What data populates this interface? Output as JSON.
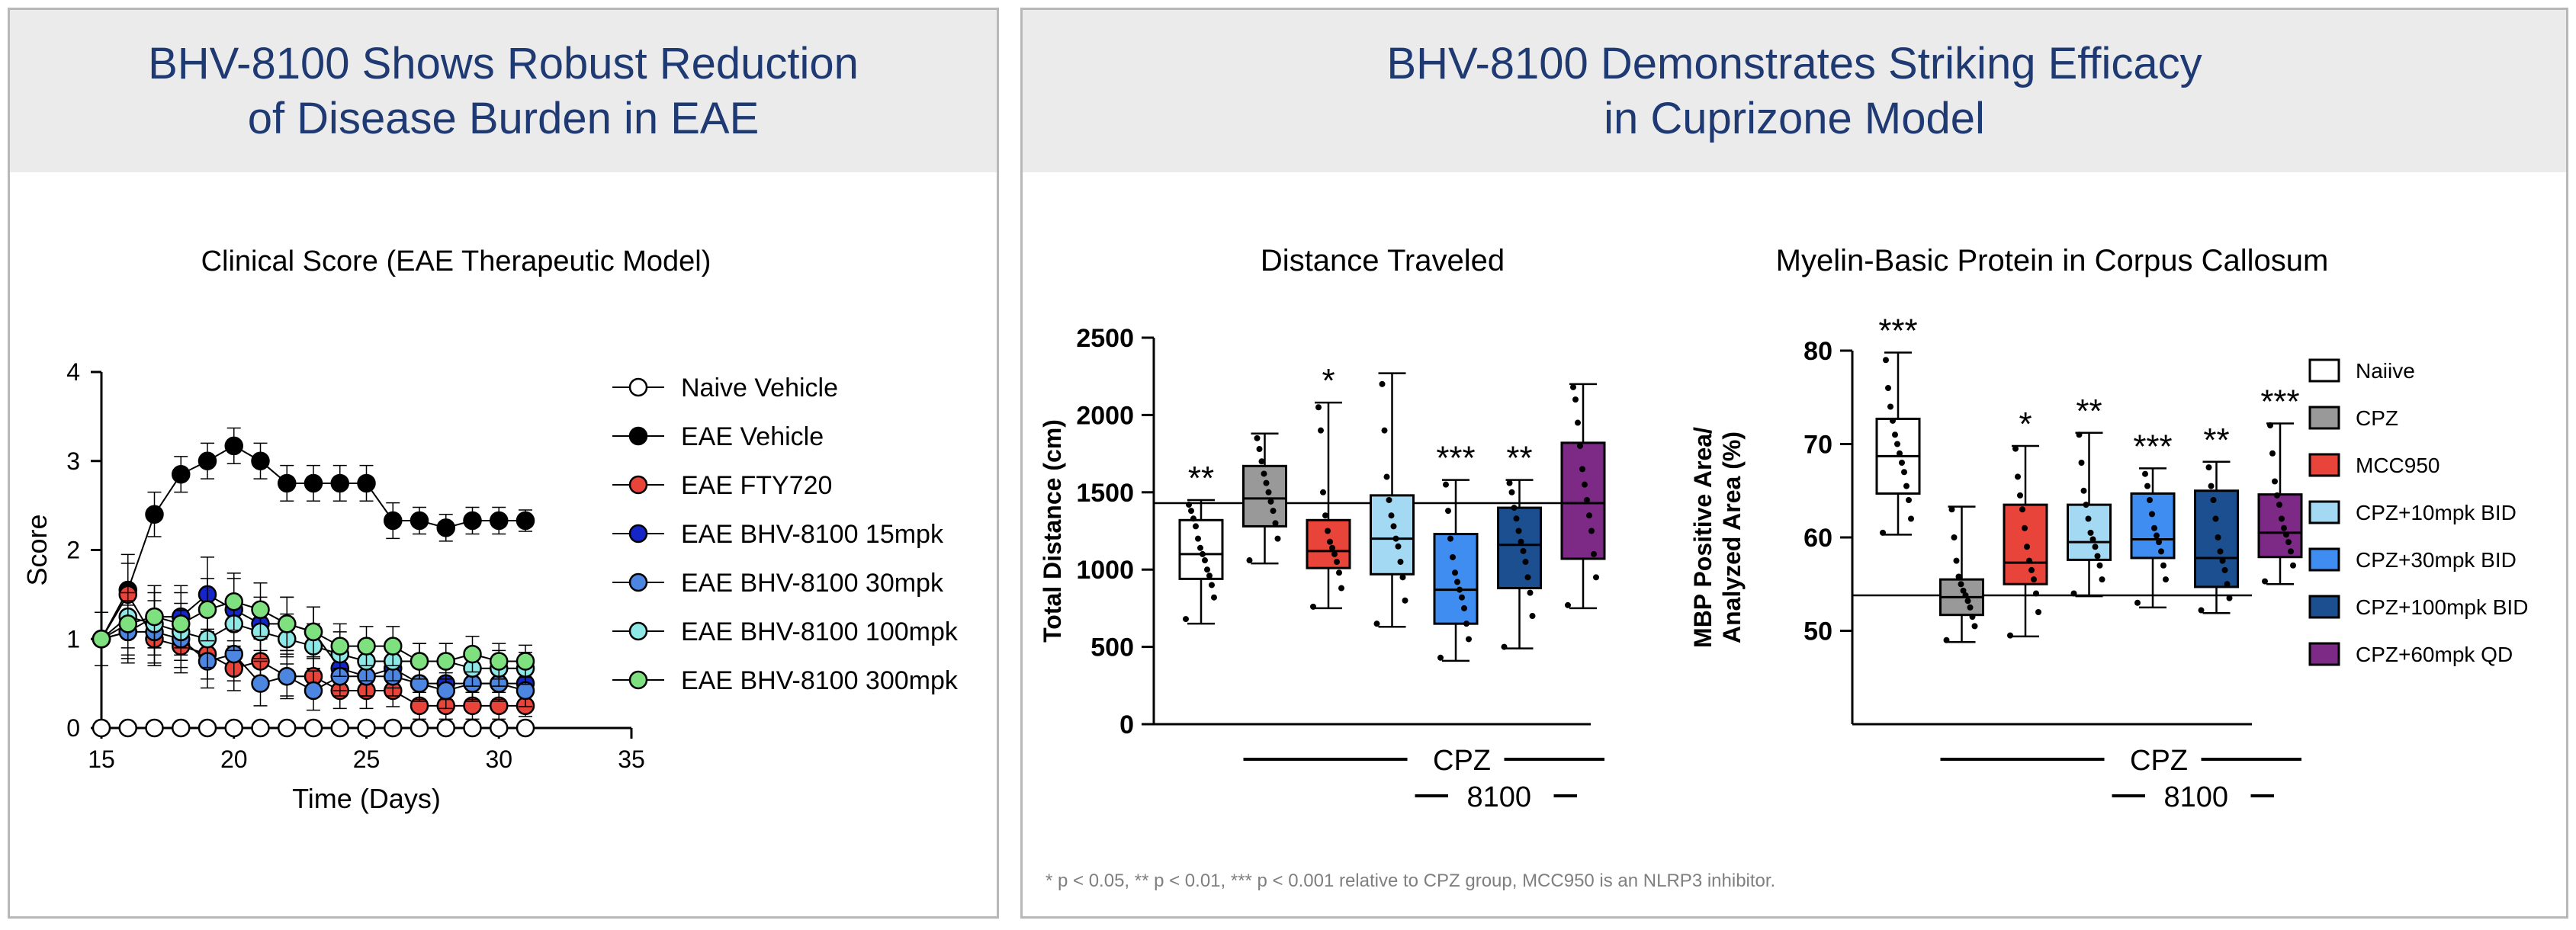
{
  "left_panel": {
    "title": "BHV-8100 Shows Robust Reduction\nof Disease Burden in EAE"
  },
  "right_panel": {
    "title": "BHV-8100 Demonstrates Striking Efficacy\nin Cuprizone Model"
  },
  "footnote": "* p < 0.05, ** p < 0.01, *** p < 0.001 relative to CPZ group, MCC950 is an NLRP3 inhibitor.",
  "chart_data": [
    {
      "type": "line",
      "title": "Clinical Score (EAE Therapeutic Model)",
      "xlabel": "Time (Days)",
      "ylabel": "Score",
      "xlim": [
        15,
        35
      ],
      "ylim": [
        0,
        4
      ],
      "xticks": [
        "15",
        "20",
        "25",
        "30",
        "35"
      ],
      "yticks": [
        "0",
        "1",
        "2",
        "3",
        "4"
      ],
      "x": [
        15,
        16,
        17,
        18,
        19,
        20,
        21,
        22,
        23,
        24,
        25,
        26,
        27,
        28,
        29,
        30,
        31
      ],
      "legend_position": "right",
      "series": [
        {
          "name": "Naive Vehicle",
          "color": "#ffffff",
          "values": [
            0,
            0,
            0,
            0,
            0,
            0,
            0,
            0,
            0,
            0,
            0,
            0,
            0,
            0,
            0,
            0,
            0
          ],
          "errors": [
            0,
            0,
            0,
            0,
            0,
            0,
            0,
            0,
            0,
            0,
            0,
            0,
            0,
            0,
            0,
            0,
            0
          ]
        },
        {
          "name": "EAE Vehicle",
          "color": "#000000",
          "values": [
            1.0,
            1.55,
            2.4,
            2.85,
            3.0,
            3.17,
            3.0,
            2.75,
            2.75,
            2.75,
            2.75,
            2.33,
            2.33,
            2.25,
            2.33,
            2.33,
            2.33
          ],
          "errors": [
            0.3,
            0.4,
            0.25,
            0.2,
            0.2,
            0.2,
            0.2,
            0.2,
            0.2,
            0.2,
            0.2,
            0.2,
            0.15,
            0.15,
            0.15,
            0.15,
            0.12
          ]
        },
        {
          "name": "EAE FTY720",
          "color": "#e8443a",
          "values": [
            1.0,
            1.5,
            1.0,
            0.92,
            0.83,
            0.67,
            0.75,
            0.58,
            0.58,
            0.42,
            0.42,
            0.42,
            0.25,
            0.25,
            0.25,
            0.25,
            0.25
          ],
          "errors": [
            0.3,
            0.35,
            0.3,
            0.3,
            0.28,
            0.25,
            0.25,
            0.22,
            0.2,
            0.2,
            0.2,
            0.18,
            0.15,
            0.15,
            0.15,
            0.15,
            0.12
          ]
        },
        {
          "name": "EAE BHV-8100 15mpk",
          "color": "#1525c8",
          "values": [
            1.0,
            1.08,
            1.25,
            1.25,
            1.5,
            1.33,
            1.17,
            1.17,
            1.08,
            0.67,
            0.58,
            0.67,
            0.5,
            0.5,
            0.5,
            0.5,
            0.5
          ],
          "errors": [
            0.3,
            0.3,
            0.35,
            0.35,
            0.42,
            0.35,
            0.3,
            0.3,
            0.28,
            0.25,
            0.22,
            0.22,
            0.18,
            0.18,
            0.18,
            0.18,
            0.15
          ]
        },
        {
          "name": "EAE BHV-8100 30mpk",
          "color": "#4d86e0",
          "values": [
            1.0,
            1.08,
            1.08,
            1.0,
            0.75,
            0.83,
            0.5,
            0.58,
            0.42,
            0.58,
            0.58,
            0.58,
            0.5,
            0.42,
            0.5,
            0.5,
            0.42
          ],
          "errors": [
            0.3,
            0.35,
            0.35,
            0.32,
            0.3,
            0.3,
            0.25,
            0.25,
            0.22,
            0.22,
            0.22,
            0.22,
            0.2,
            0.2,
            0.2,
            0.2,
            0.18
          ]
        },
        {
          "name": "EAE BHV-8100 100mpk",
          "color": "#8ee8e6",
          "values": [
            1.0,
            1.25,
            1.17,
            1.08,
            1.0,
            1.17,
            1.08,
            1.0,
            0.92,
            0.83,
            0.75,
            0.75,
            0.75,
            0.75,
            0.67,
            0.67,
            0.67
          ],
          "errors": [
            0.3,
            0.35,
            0.35,
            0.32,
            0.32,
            0.3,
            0.3,
            0.28,
            0.25,
            0.25,
            0.22,
            0.22,
            0.2,
            0.2,
            0.2,
            0.2,
            0.18
          ]
        },
        {
          "name": "EAE BHV-8100 300mpk",
          "color": "#7ee07e",
          "values": [
            1.0,
            1.17,
            1.25,
            1.17,
            1.33,
            1.42,
            1.33,
            1.17,
            1.08,
            0.92,
            0.92,
            0.92,
            0.75,
            0.75,
            0.83,
            0.75,
            0.75
          ],
          "errors": [
            0.3,
            0.35,
            0.35,
            0.35,
            0.35,
            0.32,
            0.3,
            0.3,
            0.28,
            0.25,
            0.22,
            0.22,
            0.2,
            0.2,
            0.2,
            0.2,
            0.18
          ]
        }
      ]
    },
    {
      "type": "box",
      "title": "Distance Traveled",
      "ylabel": "Total Distance (cm)",
      "ylim": [
        0,
        2500
      ],
      "yticks": [
        "0",
        "500",
        "1000",
        "1500",
        "2000",
        "2500"
      ],
      "reference_line": 1430,
      "group_labels": [
        "CPZ",
        "8100"
      ],
      "series": [
        {
          "name": "Naiive",
          "color": "#ffffff",
          "min": 650,
          "q1": 940,
          "median": 1100,
          "q3": 1320,
          "max": 1450,
          "significance": "**",
          "points": [
            680,
            820,
            900,
            960,
            1000,
            1060,
            1100,
            1140,
            1200,
            1280,
            1330,
            1380,
            1420
          ]
        },
        {
          "name": "CPZ",
          "color": "#999999",
          "min": 1040,
          "q1": 1280,
          "median": 1460,
          "q3": 1670,
          "max": 1880,
          "significance": "",
          "points": [
            1060,
            1200,
            1300,
            1380,
            1440,
            1500,
            1560,
            1620,
            1700,
            1780,
            1850
          ]
        },
        {
          "name": "MCC950",
          "color": "#e8443a",
          "min": 750,
          "q1": 1010,
          "median": 1120,
          "q3": 1320,
          "max": 2080,
          "significance": "*",
          "points": [
            760,
            880,
            980,
            1050,
            1100,
            1140,
            1180,
            1250,
            1350,
            1500,
            1900,
            2050
          ]
        },
        {
          "name": "CPZ+10mpk BID",
          "color": "#a3d9f2",
          "min": 630,
          "q1": 970,
          "median": 1200,
          "q3": 1480,
          "max": 2270,
          "significance": "",
          "points": [
            650,
            800,
            950,
            1050,
            1150,
            1200,
            1280,
            1350,
            1450,
            1600,
            1900,
            2200
          ]
        },
        {
          "name": "CPZ+30mpk BID",
          "color": "#3f8df0",
          "min": 410,
          "q1": 650,
          "median": 870,
          "q3": 1230,
          "max": 1580,
          "significance": "***",
          "points": [
            430,
            550,
            650,
            750,
            820,
            870,
            920,
            980,
            1080,
            1200,
            1380,
            1550
          ]
        },
        {
          "name": "CPZ+100mpk BID",
          "color": "#1c4f8f",
          "min": 490,
          "q1": 880,
          "median": 1160,
          "q3": 1400,
          "max": 1580,
          "significance": "**",
          "points": [
            500,
            700,
            850,
            950,
            1050,
            1120,
            1180,
            1250,
            1330,
            1400,
            1500,
            1560
          ]
        },
        {
          "name": "CPZ+60mpk QD",
          "color": "#7d2a86",
          "min": 750,
          "q1": 1070,
          "median": 1430,
          "q3": 1820,
          "max": 2200,
          "significance": "",
          "points": [
            770,
            950,
            1100,
            1250,
            1350,
            1450,
            1550,
            1650,
            1800,
            1950,
            2100,
            2180
          ]
        }
      ]
    },
    {
      "type": "box",
      "title": "Myelin-Basic Protein in Corpus Callosum",
      "ylabel": "MBP Positive Area/\nAnalyzed Area (%)",
      "ylim": [
        40,
        80
      ],
      "yticks": [
        "50",
        "60",
        "70",
        "80"
      ],
      "reference_line": 53.8,
      "group_labels": [
        "CPZ",
        "8100"
      ],
      "legend_position": "right",
      "series": [
        {
          "name": "Naiive",
          "color": "#ffffff",
          "min": 60.3,
          "q1": 64.7,
          "median": 68.7,
          "q3": 72.7,
          "max": 79.8,
          "significance": "***",
          "points": [
            60.5,
            62,
            64,
            65.5,
            67,
            68,
            69,
            70,
            71,
            72.5,
            74,
            76,
            79
          ]
        },
        {
          "name": "CPZ",
          "color": "#999999",
          "min": 48.8,
          "q1": 51.7,
          "median": 53.6,
          "q3": 55.5,
          "max": 63.3,
          "significance": "",
          "points": [
            49,
            50.5,
            51.5,
            52.5,
            53.2,
            53.8,
            54.3,
            55,
            55.8,
            57.5,
            60,
            63
          ]
        },
        {
          "name": "MCC950",
          "color": "#e8443a",
          "min": 49.4,
          "q1": 55.0,
          "median": 57.3,
          "q3": 63.5,
          "max": 69.8,
          "significance": "*",
          "points": [
            49.5,
            52,
            54,
            55.5,
            56.5,
            57.5,
            59,
            61,
            63,
            64.5,
            66.5,
            69.5
          ]
        },
        {
          "name": "CPZ+10mpk BID",
          "color": "#a3d9f2",
          "min": 53.7,
          "q1": 57.6,
          "median": 59.5,
          "q3": 63.5,
          "max": 71.2,
          "significance": "**",
          "points": [
            54,
            55.5,
            57,
            58,
            59,
            59.8,
            60.5,
            62,
            63.5,
            65,
            68,
            71
          ]
        },
        {
          "name": "CPZ+30mpk BID",
          "color": "#3f8df0",
          "min": 52.5,
          "q1": 57.8,
          "median": 59.8,
          "q3": 64.7,
          "max": 67.4,
          "significance": "***",
          "points": [
            53,
            55.5,
            57,
            58.5,
            59.5,
            60.2,
            61,
            62.5,
            64,
            65.5,
            66.8
          ]
        },
        {
          "name": "CPZ+100mpk BID",
          "color": "#1c4f8f",
          "min": 51.9,
          "q1": 54.7,
          "median": 57.8,
          "q3": 65.0,
          "max": 68.1,
          "significance": "**",
          "points": [
            52.2,
            53.5,
            55,
            56.5,
            57.5,
            58.5,
            60,
            62,
            64,
            65.5,
            67.5
          ]
        },
        {
          "name": "CPZ+60mpk QD",
          "color": "#7d2a86",
          "min": 55.0,
          "q1": 57.9,
          "median": 60.5,
          "q3": 64.6,
          "max": 72.2,
          "significance": "***",
          "points": [
            55.3,
            57,
            58.5,
            59.5,
            60.3,
            61,
            62,
            63.5,
            64.5,
            66,
            69,
            72
          ]
        }
      ]
    }
  ]
}
